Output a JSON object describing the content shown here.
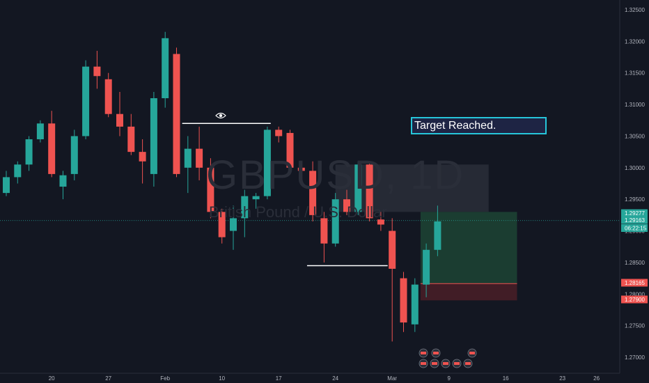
{
  "watermark": {
    "symbol": "GBPUSD, 1D",
    "description": "British Pound / U.S. Dollar"
  },
  "annotation": {
    "text": "Target Reached."
  },
  "colors": {
    "background": "#131722",
    "up": "#26a69a",
    "down": "#ef5350",
    "axis_text": "#b2b5be"
  },
  "price_tags": [
    {
      "label": "1.29277",
      "bg": "#26a69a",
      "fg": "#ffffff"
    },
    {
      "label": "1.29163",
      "bg": "#26a69a",
      "fg": "#ffffff"
    },
    {
      "label": "06:22:15",
      "bg": "#26a69a",
      "fg": "#ffffff"
    },
    {
      "label": "1.28165",
      "bg": "#ef5350",
      "fg": "#ffffff"
    },
    {
      "label": "1.27900",
      "bg": "#ef5350",
      "fg": "#ffffff"
    }
  ],
  "chart_data": {
    "type": "candlestick",
    "ylim": [
      1.268,
      1.327
    ],
    "y_ticks": [
      "1.32500",
      "1.32000",
      "1.31500",
      "1.31000",
      "1.30500",
      "1.30000",
      "1.29500",
      "1.29000",
      "1.28500",
      "1.28000",
      "1.27500",
      "1.27000"
    ],
    "y_tick_values": [
      1.325,
      1.32,
      1.315,
      1.31,
      1.305,
      1.3,
      1.295,
      1.29,
      1.285,
      1.28,
      1.275,
      1.27
    ],
    "x_ticks": [
      {
        "label": "20",
        "day": 4
      },
      {
        "label": "27",
        "day": 9
      },
      {
        "label": "Feb",
        "day": 14
      },
      {
        "label": "10",
        "day": 19
      },
      {
        "label": "17",
        "day": 24
      },
      {
        "label": "24",
        "day": 29
      },
      {
        "label": "Mar",
        "day": 34
      },
      {
        "label": "9",
        "day": 39
      },
      {
        "label": "16",
        "day": 44
      },
      {
        "label": "23",
        "day": 49
      },
      {
        "label": "26",
        "day": 52
      }
    ],
    "candles": [
      {
        "o": 1.296,
        "h": 1.2995,
        "l": 1.2955,
        "c": 1.2985
      },
      {
        "o": 1.2985,
        "h": 1.301,
        "l": 1.2975,
        "c": 1.3005
      },
      {
        "o": 1.3005,
        "h": 1.305,
        "l": 1.2995,
        "c": 1.3045
      },
      {
        "o": 1.3045,
        "h": 1.3075,
        "l": 1.304,
        "c": 1.307
      },
      {
        "o": 1.307,
        "h": 1.309,
        "l": 1.2985,
        "c": 1.299
      },
      {
        "o": 1.297,
        "h": 1.2995,
        "l": 1.295,
        "c": 1.2988
      },
      {
        "o": 1.299,
        "h": 1.306,
        "l": 1.298,
        "c": 1.305
      },
      {
        "o": 1.305,
        "h": 1.317,
        "l": 1.3045,
        "c": 1.316
      },
      {
        "o": 1.316,
        "h": 1.3185,
        "l": 1.3125,
        "c": 1.3145
      },
      {
        "o": 1.314,
        "h": 1.315,
        "l": 1.308,
        "c": 1.3085
      },
      {
        "o": 1.3085,
        "h": 1.312,
        "l": 1.305,
        "c": 1.3065
      },
      {
        "o": 1.3065,
        "h": 1.3085,
        "l": 1.302,
        "c": 1.3025
      },
      {
        "o": 1.3025,
        "h": 1.3045,
        "l": 1.2975,
        "c": 1.301
      },
      {
        "o": 1.299,
        "h": 1.312,
        "l": 1.297,
        "c": 1.311
      },
      {
        "o": 1.311,
        "h": 1.3215,
        "l": 1.3095,
        "c": 1.3205
      },
      {
        "o": 1.318,
        "h": 1.319,
        "l": 1.2985,
        "c": 1.299
      },
      {
        "o": 1.3,
        "h": 1.305,
        "l": 1.296,
        "c": 1.303
      },
      {
        "o": 1.303,
        "h": 1.3065,
        "l": 1.298,
        "c": 1.3
      },
      {
        "o": 1.3,
        "h": 1.3015,
        "l": 1.292,
        "c": 1.293
      },
      {
        "o": 1.293,
        "h": 1.2935,
        "l": 1.288,
        "c": 1.289
      },
      {
        "o": 1.29,
        "h": 1.294,
        "l": 1.287,
        "c": 1.292
      },
      {
        "o": 1.292,
        "h": 1.2965,
        "l": 1.289,
        "c": 1.2955
      },
      {
        "o": 1.295,
        "h": 1.296,
        "l": 1.2935,
        "c": 1.2955
      },
      {
        "o": 1.2955,
        "h": 1.3065,
        "l": 1.295,
        "c": 1.306
      },
      {
        "o": 1.306,
        "h": 1.3065,
        "l": 1.304,
        "c": 1.305
      },
      {
        "o": 1.3055,
        "h": 1.306,
        "l": 1.2995,
        "c": 1.3
      },
      {
        "o": 1.3,
        "h": 1.301,
        "l": 1.299,
        "c": 1.2995
      },
      {
        "o": 1.2995,
        "h": 1.301,
        "l": 1.2915,
        "c": 1.2925
      },
      {
        "o": 1.292,
        "h": 1.293,
        "l": 1.285,
        "c": 1.288
      },
      {
        "o": 1.288,
        "h": 1.296,
        "l": 1.2875,
        "c": 1.295
      },
      {
        "o": 1.295,
        "h": 1.2965,
        "l": 1.2925,
        "c": 1.293
      },
      {
        "o": 1.293,
        "h": 1.301,
        "l": 1.2925,
        "c": 1.3005
      },
      {
        "o": 1.3005,
        "h": 1.301,
        "l": 1.2915,
        "c": 1.292
      },
      {
        "o": 1.2918,
        "h": 1.293,
        "l": 1.29,
        "c": 1.291
      },
      {
        "o": 1.29,
        "h": 1.292,
        "l": 1.2725,
        "c": 1.284
      },
      {
        "o": 1.2825,
        "h": 1.2835,
        "l": 1.274,
        "c": 1.2755
      },
      {
        "o": 1.2752,
        "h": 1.2825,
        "l": 1.274,
        "c": 1.2815
      },
      {
        "o": 1.2815,
        "h": 1.288,
        "l": 1.2795,
        "c": 1.287
      },
      {
        "o": 1.287,
        "h": 1.294,
        "l": 1.286,
        "c": 1.2915
      }
    ],
    "horizontal_levels": [
      {
        "price": 1.307,
        "from_day": 15.5,
        "to_day": 23.3,
        "label": "resistance"
      },
      {
        "price": 1.2845,
        "from_day": 26.5,
        "to_day": 33.6,
        "label": "support"
      }
    ],
    "zones": [
      {
        "kind": "gray",
        "from_day": 29,
        "to_day": 42.5,
        "y_top": 1.3005,
        "y_bottom": 1.293
      },
      {
        "kind": "profit",
        "from_day": 36.5,
        "to_day": 45,
        "y_top": 1.293,
        "y_bottom": 1.28165
      },
      {
        "kind": "stop",
        "from_day": 36.5,
        "to_day": 45,
        "y_top": 1.28165,
        "y_bottom": 1.279
      }
    ],
    "current_price": 1.29163,
    "grid": false,
    "legend": "none"
  }
}
